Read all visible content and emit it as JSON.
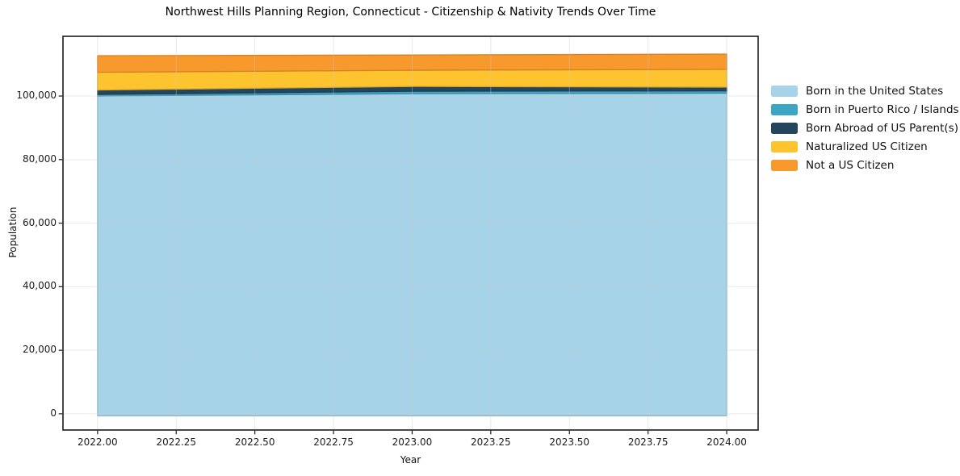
{
  "chart": {
    "title": "Northwest Hills Planning Region, Connecticut - Citizenship & Nativity Trends Over Time",
    "xlabel": "Year",
    "ylabel": "Population"
  },
  "chart_data": {
    "type": "area",
    "stacked": true,
    "title": "Northwest Hills Planning Region, Connecticut - Citizenship & Nativity Trends Over Time",
    "xlabel": "Year",
    "ylabel": "Population",
    "x": [
      2022,
      2023,
      2024
    ],
    "series": [
      {
        "name": "Born in the United States",
        "color": "#a6d3e8",
        "values": [
          100000,
          100750,
          100900
        ]
      },
      {
        "name": "Born in Puerto Rico / Islands",
        "color": "#3fa5c5",
        "values": [
          500,
          770,
          750
        ]
      },
      {
        "name": "Born Abroad of US Parent(s)",
        "color": "#25455c",
        "values": [
          1400,
          1500,
          1150
        ]
      },
      {
        "name": "Naturalized US Citizen",
        "color": "#fdc42f",
        "values": [
          5600,
          5100,
          5600
        ]
      },
      {
        "name": "Not a US Citizen",
        "color": "#f8992e",
        "values": [
          5200,
          4800,
          4800
        ]
      }
    ],
    "xlim": [
      2021.89,
      2024.1
    ],
    "ylim": [
      -5100,
      118800
    ],
    "xticks": [
      "2022.00",
      "2022.25",
      "2022.50",
      "2022.75",
      "2023.00",
      "2023.25",
      "2023.50",
      "2023.75",
      "2024.00"
    ],
    "yticks": [
      "0",
      "20,000",
      "40,000",
      "60,000",
      "80,000",
      "100,000"
    ],
    "grid": true,
    "grid_color": "#c9c9c9",
    "spine_color": "#1a1a1a",
    "legend_position": "right"
  }
}
